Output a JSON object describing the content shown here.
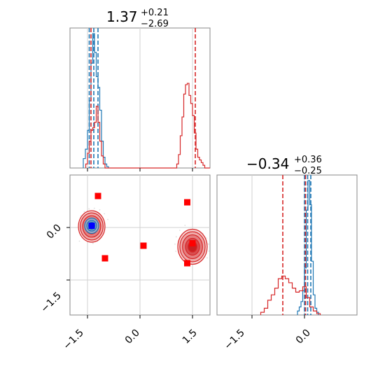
{
  "chart_data": {
    "type": "corner",
    "panels": [
      {
        "id": "hist-x",
        "kind": "histogram",
        "title": {
          "main": "1.37",
          "sup": "+0.21",
          "sub": "−2.69"
        },
        "xlim": [
          -2.0,
          2.0
        ],
        "grid": true,
        "series": [
          {
            "color": "#1f77b4",
            "bins": [
              -1.62,
              -1.56,
              -1.5,
              -1.45,
              -1.4,
              -1.35,
              -1.3,
              -1.25,
              -1.2,
              -1.15,
              -1.1,
              -1.05,
              -1.0,
              -0.95,
              -0.9
            ],
            "counts": [
              0.07,
              0.14,
              0.28,
              0.5,
              0.78,
              1.0,
              0.86,
              0.68,
              0.6,
              0.43,
              0.2,
              0.08,
              0.03,
              0.01
            ],
            "quantile_lines": [
              -1.45,
              -1.32,
              -1.2
            ]
          },
          {
            "color": "#d62728",
            "bins": [
              -1.55,
              -1.5,
              -1.45,
              -1.4,
              -1.35,
              -1.3,
              -1.25,
              -1.2,
              -1.15,
              -1.1,
              -1.05,
              -1.0,
              1.05,
              1.1,
              1.15,
              1.2,
              1.25,
              1.3,
              1.35,
              1.4,
              1.45,
              1.5,
              1.55,
              1.6,
              1.65,
              1.7,
              1.75,
              1.8,
              1.85,
              1.9,
              1.95,
              2.0
            ],
            "counts": [
              0.03,
              0.11,
              0.2,
              0.28,
              0.3,
              0.34,
              0.46,
              0.34,
              0.2,
              0.09,
              0.03,
              0.0,
              0.03,
              0.1,
              0.24,
              0.38,
              0.55,
              0.62,
              0.63,
              0.54,
              0.48,
              0.39,
              0.26,
              0.14,
              0.08,
              0.06,
              0.04,
              0.02,
              0.0,
              0.0,
              0.0
            ],
            "quantile_lines": [
              -1.4,
              1.58
            ]
          }
        ]
      },
      {
        "id": "scatter-xy",
        "kind": "2d-contour",
        "xlim": [
          -2.0,
          2.0
        ],
        "ylim": [
          -2.5,
          1.5
        ],
        "xticks": [
          "−1.5",
          "0.0",
          "1.5"
        ],
        "yticks": [
          "0.0",
          "−1.5"
        ],
        "grid": true,
        "contours": [
          {
            "color": "#d62728",
            "cx": -1.38,
            "cy": 0.03,
            "rx": 0.38,
            "ry": 0.45
          },
          {
            "color": "#d62728",
            "cx": 1.5,
            "cy": -0.55,
            "rx": 0.42,
            "ry": 0.5
          },
          {
            "color": "#1f77b4",
            "cx": -1.38,
            "cy": 0.05,
            "rx": 0.2,
            "ry": 0.22
          }
        ],
        "markers": [
          {
            "color": "#ff0000",
            "x": -1.2,
            "y": 0.9
          },
          {
            "color": "#ff0000",
            "x": 1.35,
            "y": 0.72
          },
          {
            "color": "#ff0000",
            "x": 0.1,
            "y": -0.52
          },
          {
            "color": "#ff0000",
            "x": 1.5,
            "y": -0.45
          },
          {
            "color": "#ff0000",
            "x": -1.0,
            "y": -0.88
          },
          {
            "color": "#ff0000",
            "x": 1.35,
            "y": -1.02
          },
          {
            "color": "#0000ff",
            "x": -1.38,
            "y": 0.05
          }
        ]
      },
      {
        "id": "hist-y",
        "kind": "histogram",
        "title": {
          "main": "−0.34",
          "sup": "+0.36",
          "sub": "−0.25"
        },
        "xlim": [
          -2.5,
          1.5
        ],
        "xticks": [
          "−1.5",
          "0.0"
        ],
        "grid": true,
        "series": [
          {
            "color": "#1f77b4",
            "bins": [
              -0.2,
              -0.15,
              -0.1,
              -0.05,
              0.0,
              0.05,
              0.1,
              0.15,
              0.2,
              0.25,
              0.3,
              0.35,
              0.4
            ],
            "counts": [
              0.03,
              0.06,
              0.1,
              0.18,
              0.35,
              0.78,
              1.0,
              0.82,
              0.4,
              0.15,
              0.05,
              0.02
            ],
            "quantile_lines": [
              0.0,
              0.09,
              0.18
            ]
          },
          {
            "color": "#d62728",
            "bins": [
              -1.25,
              -1.15,
              -1.05,
              -0.95,
              -0.85,
              -0.75,
              -0.65,
              -0.55,
              -0.45,
              -0.35,
              -0.25,
              -0.15,
              -0.05,
              0.05,
              0.15,
              0.25,
              0.35,
              0.45
            ],
            "counts": [
              0.02,
              0.05,
              0.11,
              0.15,
              0.2,
              0.27,
              0.29,
              0.27,
              0.24,
              0.2,
              0.17,
              0.18,
              0.21,
              0.13,
              0.06,
              0.03,
              0.01
            ],
            "quantile_lines": [
              -0.62,
              0.03
            ]
          }
        ]
      }
    ]
  }
}
